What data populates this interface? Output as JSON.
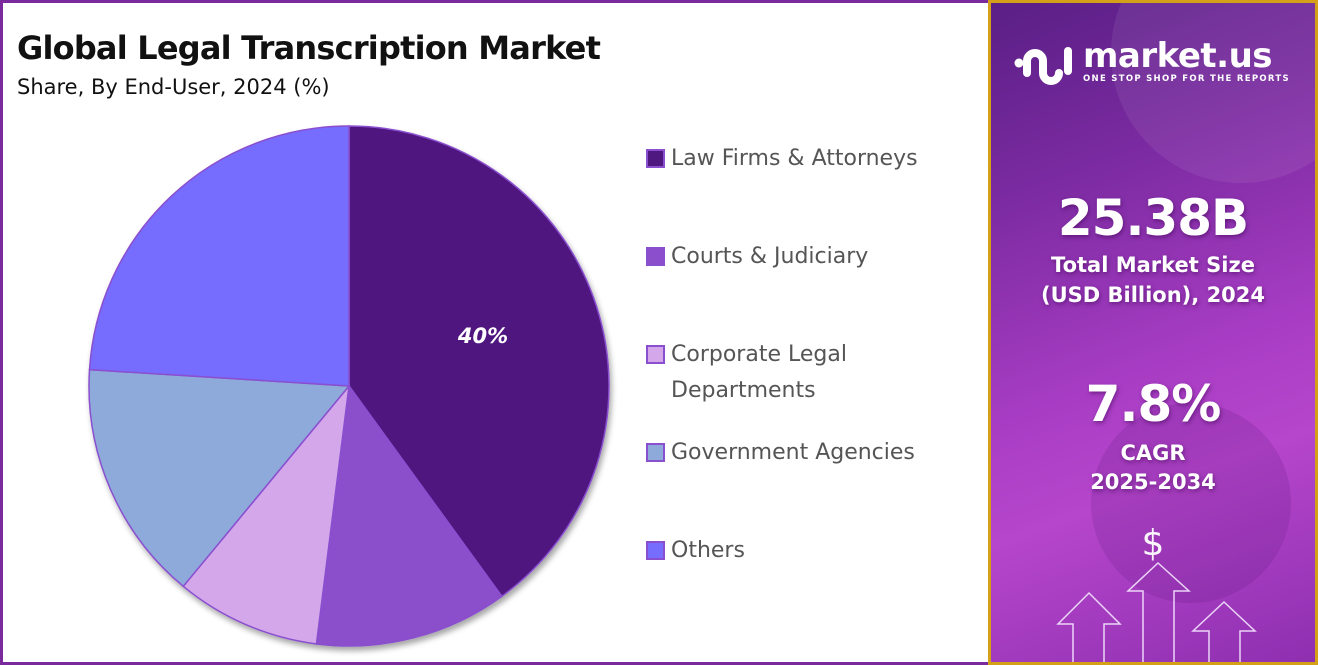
{
  "header": {
    "title": "Global Legal Transcription Market",
    "subtitle": "Share, By End-User, 2024 (%)"
  },
  "chart_data": {
    "type": "pie",
    "title": "Global Legal Transcription Market",
    "subtitle": "Share, By End-User, 2024 (%)",
    "categories": [
      "Law Firms & Attorneys",
      "Courts & Judiciary",
      "Corporate Legal Departments",
      "Government Agencies",
      "Others"
    ],
    "values": [
      40,
      12,
      9,
      15,
      24
    ],
    "colors": [
      "#4f1780",
      "#8b4fcb",
      "#d3a7ea",
      "#8eaadb",
      "#766cfe"
    ],
    "data_labels": [
      "40%",
      "",
      "",
      "",
      ""
    ],
    "start_angle_deg": 0,
    "direction": "clockwise",
    "legend_position": "right"
  },
  "legend": {
    "items": [
      {
        "label": "Law Firms & Attorneys",
        "color": "#4f1780"
      },
      {
        "label": "Courts & Judiciary",
        "color": "#8b4fcb"
      },
      {
        "label": "Corporate Legal Departments",
        "color": "#d3a7ea"
      },
      {
        "label": "Government Agencies",
        "color": "#8eaadb"
      },
      {
        "label": "Others",
        "color": "#766cfe"
      }
    ]
  },
  "pie": {
    "label_0": "40%"
  },
  "sidebar": {
    "brand": "market.us",
    "tagline": "ONE STOP SHOP FOR THE REPORTS",
    "market_size_value": "25.38B",
    "market_size_label_1": "Total Market Size",
    "market_size_label_2": "(USD Billion), 2024",
    "cagr_value": "7.8%",
    "cagr_label_1": "CAGR",
    "cagr_label_2": "2025-2034",
    "currency_symbol": "$"
  },
  "colors": {
    "frame_border": "#7b2a9e",
    "sidebar_border": "#d4a017",
    "slice_border": "#8a4fcf"
  }
}
